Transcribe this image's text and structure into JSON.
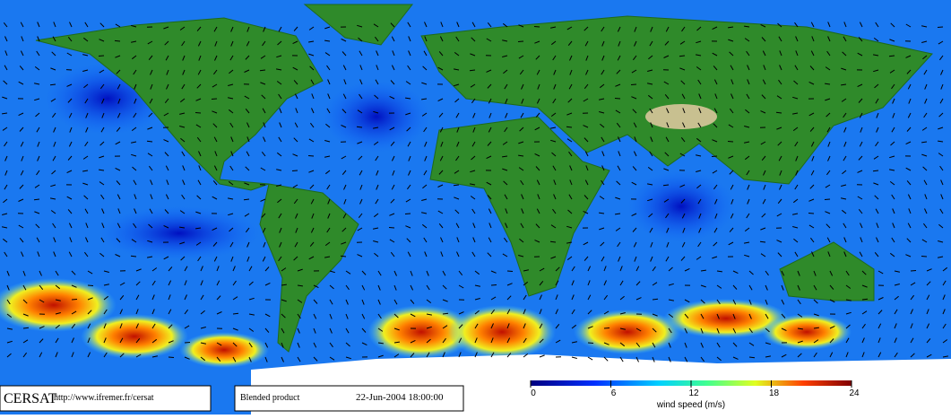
{
  "footer": {
    "logo": "CERSAT",
    "url": "http://www.ifremer.fr/cersat",
    "product": "Blended product",
    "date": "22-Jun-2004 18:00:00"
  },
  "colorbar": {
    "label": "wind speed (m/s)",
    "lim": [
      0,
      24
    ],
    "ticks": [
      0,
      6,
      12,
      18,
      24
    ]
  }
}
